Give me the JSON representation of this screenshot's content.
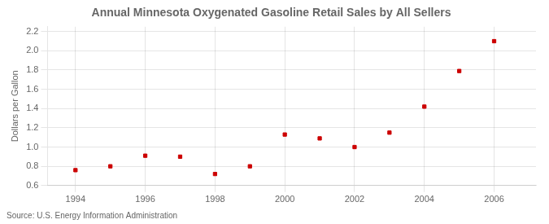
{
  "chart_data": {
    "type": "scatter",
    "title": "Annual Minnesota Oxygenated Gasoline Retail Sales by All Sellers",
    "y_label": "Dollars per Gallon",
    "annotations": [
      "Source: U.S. Energy Information Administration"
    ],
    "x": [
      1994,
      1995,
      1996,
      1997,
      1998,
      1999,
      2000,
      2001,
      2002,
      2003,
      2004,
      2005,
      2006
    ],
    "values": [
      0.76,
      0.8,
      0.91,
      0.9,
      0.72,
      0.8,
      1.13,
      1.09,
      1.0,
      1.15,
      1.42,
      1.79,
      2.1
    ],
    "color": "#cc0000",
    "marker": "square",
    "xlim": [
      1993.2,
      2007.2
    ],
    "xticks": [
      1994,
      1996,
      1998,
      2000,
      2002,
      2004,
      2006
    ],
    "ylim": [
      0.6,
      2.25
    ],
    "yticks": [
      0.6,
      0.8,
      {
        "value": 1.0,
        "label": "1.0"
      },
      1.2,
      1.4,
      1.6,
      1.8,
      {
        "value": 2.0,
        "label": "2.0"
      },
      2.2
    ],
    "grid": true
  }
}
